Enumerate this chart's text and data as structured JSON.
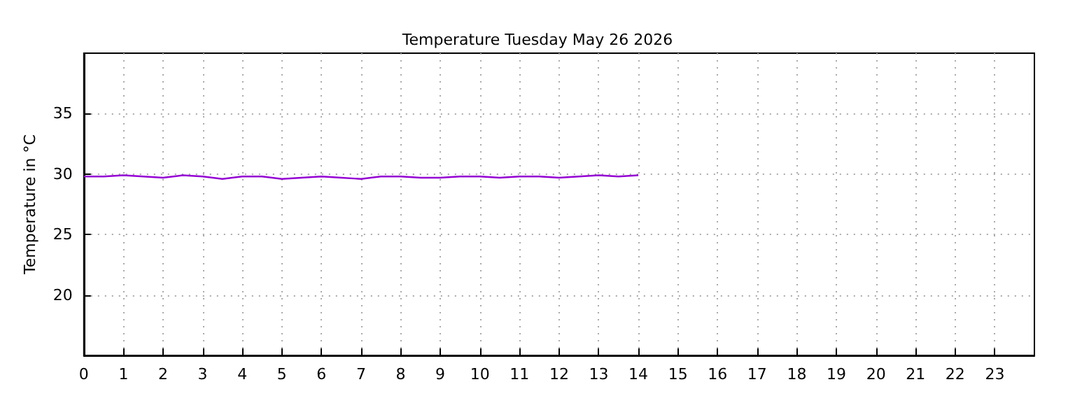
{
  "chart_data": {
    "type": "line",
    "title": "Temperature Tuesday May 26 2026",
    "ylabel": "Temperature in °C",
    "x": [
      0,
      0.5,
      1,
      1.5,
      2,
      2.5,
      3,
      3.5,
      4,
      4.5,
      5,
      5.5,
      6,
      6.5,
      7,
      7.5,
      8,
      8.5,
      9,
      9.5,
      10,
      10.5,
      11,
      11.5,
      12,
      12.5,
      13,
      13.5,
      14
    ],
    "series": [
      {
        "color": "#9400d3",
        "values": [
          29.8,
          29.8,
          29.9,
          29.8,
          29.7,
          29.9,
          29.8,
          29.6,
          29.8,
          29.8,
          29.6,
          29.7,
          29.8,
          29.7,
          29.6,
          29.8,
          29.8,
          29.7,
          29.7,
          29.8,
          29.8,
          29.7,
          29.8,
          29.8,
          29.7,
          29.8,
          29.9,
          29.8,
          29.9
        ]
      }
    ],
    "xlim": [
      0,
      24
    ],
    "xticks": [
      0,
      1,
      2,
      3,
      4,
      5,
      6,
      7,
      8,
      9,
      10,
      11,
      12,
      13,
      14,
      15,
      16,
      17,
      18,
      19,
      20,
      21,
      22,
      23
    ],
    "ylim": [
      15,
      40
    ],
    "yticks": [
      20,
      25,
      30,
      35
    ],
    "grid": true,
    "marker": "none",
    "line_style": "solid"
  }
}
